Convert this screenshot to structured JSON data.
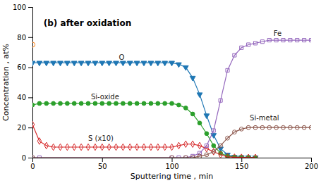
{
  "chart_data": {
    "type": "line",
    "title": "(b) after oxidation",
    "xlabel": "Sputtering time , min",
    "ylabel": "Concentration , at%",
    "xlim": [
      0,
      200
    ],
    "ylim": [
      0,
      100
    ],
    "xticks": [
      0,
      50,
      100,
      150,
      200
    ],
    "yticks": [
      0,
      20,
      40,
      60,
      80,
      100
    ],
    "series": [
      {
        "marker": "triangle-down",
        "x": [
          0,
          5,
          10,
          15,
          20,
          25,
          30,
          35,
          40,
          45,
          50,
          55,
          60,
          65,
          70,
          75,
          80,
          85,
          90,
          95,
          100,
          105,
          110,
          115,
          120,
          125,
          130,
          135,
          140,
          145,
          150,
          155,
          160
        ],
        "values": [
          63,
          63,
          63,
          63,
          63,
          63,
          63,
          63,
          63,
          63,
          63,
          63,
          63,
          63,
          63,
          63,
          63,
          63,
          63,
          63,
          63,
          62,
          60,
          53,
          42,
          28,
          15,
          6,
          2,
          0.5,
          0.3,
          0.2,
          0.1
        ]
      },
      {
        "marker": "circle-open",
        "x": [
          0
        ],
        "values": [
          75
        ]
      },
      {
        "marker": "circle",
        "x": [
          0,
          5,
          10,
          15,
          20,
          25,
          30,
          35,
          40,
          45,
          50,
          55,
          60,
          65,
          70,
          75,
          80,
          85,
          90,
          95,
          100,
          105,
          110,
          115,
          120,
          125,
          130,
          135,
          140,
          145,
          150,
          155,
          160
        ],
        "values": [
          35,
          36,
          36,
          36,
          36,
          36,
          36,
          36,
          36,
          36,
          36,
          36,
          36,
          36,
          36,
          36,
          36,
          36,
          36,
          36,
          36,
          35,
          33,
          29,
          23,
          16,
          8,
          3,
          1,
          0.5,
          0.3,
          0.2,
          0.1
        ]
      },
      {
        "marker": "diamond-open",
        "x": [
          0,
          5,
          10,
          15,
          20,
          25,
          30,
          35,
          40,
          45,
          50,
          55,
          60,
          65,
          70,
          75,
          80,
          85,
          90,
          95,
          100,
          105,
          110,
          115,
          120,
          125,
          130,
          135,
          140,
          145,
          150,
          155,
          160
        ],
        "values": [
          22,
          11,
          8,
          7,
          7,
          7,
          7,
          7,
          7,
          7,
          7,
          7,
          7,
          7,
          7,
          7,
          7,
          7,
          7,
          7,
          7,
          8,
          9,
          9,
          8,
          6,
          4,
          2,
          0.5,
          0.3,
          0.2,
          0.1,
          0.1
        ]
      },
      {
        "marker": "square-open",
        "x": [
          0,
          5,
          100,
          105,
          110,
          115,
          120,
          125,
          130,
          135,
          140,
          145,
          150,
          155,
          160,
          165,
          170,
          175,
          180,
          185,
          190,
          195,
          200
        ],
        "values": [
          0,
          0,
          0,
          0,
          0,
          1,
          3,
          8,
          18,
          38,
          58,
          68,
          73,
          75,
          76,
          77,
          78,
          78,
          78,
          78,
          78,
          78,
          78
        ]
      },
      {
        "marker": "circle-open",
        "x": [
          0,
          100,
          110,
          115,
          120,
          125,
          130,
          135,
          140,
          145,
          150,
          155,
          160,
          165,
          170,
          175,
          180,
          185,
          190,
          195,
          200
        ],
        "values": [
          0,
          0,
          0,
          0,
          1,
          2,
          4,
          8,
          13,
          17,
          19,
          20,
          20,
          20,
          20,
          20,
          20,
          20,
          20,
          20,
          20
        ]
      }
    ],
    "annotations": [
      {
        "text": "O",
        "x": 62,
        "y": 65
      },
      {
        "text": "Si-oxide",
        "x": 42,
        "y": 39
      },
      {
        "text": "S (x10)",
        "x": 40,
        "y": 11
      },
      {
        "text": "Fe",
        "x": 173,
        "y": 81
      },
      {
        "text": "Si-metal",
        "x": 156,
        "y": 25
      }
    ]
  }
}
